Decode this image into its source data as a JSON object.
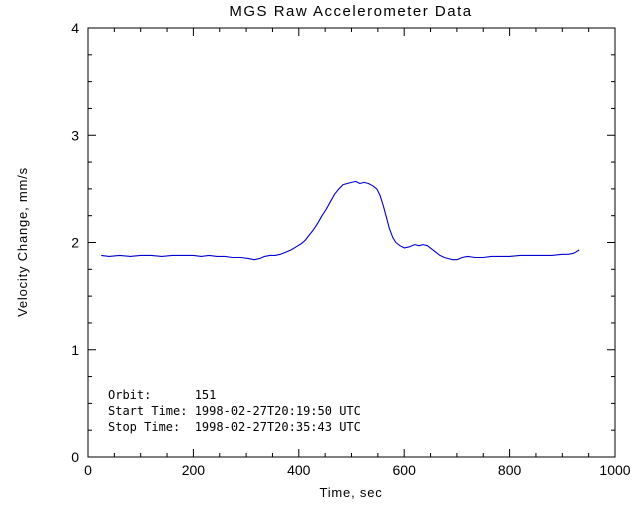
{
  "chart_data": {
    "type": "line",
    "title": "MGS Raw Accelerometer Data",
    "xlabel": "Time, sec",
    "ylabel": "Velocity Change, mm/s",
    "xlim": [
      0,
      1000
    ],
    "ylim": [
      0,
      4
    ],
    "x_ticks": [
      0,
      200,
      400,
      600,
      800,
      1000
    ],
    "x_tick_labels": [
      "0",
      "200",
      "400",
      "600",
      "800",
      "1000"
    ],
    "y_ticks": [
      0,
      1,
      2,
      3,
      4
    ],
    "y_tick_labels": [
      "0",
      "1",
      "2",
      "3",
      "4"
    ],
    "x_minor_step": 50,
    "y_minor_step": 0.25,
    "grid": false,
    "legend": "none",
    "background": "#ffffff",
    "axis_color": "#000000",
    "line_color": "#0000cd",
    "series": [
      {
        "name": "velocity-change",
        "points": [
          [
            25,
            1.88
          ],
          [
            40,
            1.87
          ],
          [
            60,
            1.88
          ],
          [
            80,
            1.87
          ],
          [
            100,
            1.88
          ],
          [
            120,
            1.88
          ],
          [
            140,
            1.87
          ],
          [
            160,
            1.88
          ],
          [
            180,
            1.88
          ],
          [
            200,
            1.88
          ],
          [
            215,
            1.87
          ],
          [
            230,
            1.88
          ],
          [
            245,
            1.87
          ],
          [
            260,
            1.87
          ],
          [
            275,
            1.86
          ],
          [
            290,
            1.86
          ],
          [
            305,
            1.85
          ],
          [
            315,
            1.84
          ],
          [
            325,
            1.85
          ],
          [
            335,
            1.87
          ],
          [
            345,
            1.88
          ],
          [
            355,
            1.88
          ],
          [
            365,
            1.89
          ],
          [
            375,
            1.91
          ],
          [
            385,
            1.93
          ],
          [
            395,
            1.96
          ],
          [
            405,
            1.99
          ],
          [
            412,
            2.02
          ],
          [
            420,
            2.07
          ],
          [
            428,
            2.12
          ],
          [
            436,
            2.18
          ],
          [
            444,
            2.25
          ],
          [
            452,
            2.31
          ],
          [
            460,
            2.38
          ],
          [
            468,
            2.45
          ],
          [
            476,
            2.5
          ],
          [
            484,
            2.54
          ],
          [
            492,
            2.55
          ],
          [
            500,
            2.56
          ],
          [
            508,
            2.57
          ],
          [
            516,
            2.55
          ],
          [
            524,
            2.56
          ],
          [
            532,
            2.55
          ],
          [
            540,
            2.53
          ],
          [
            548,
            2.5
          ],
          [
            554,
            2.44
          ],
          [
            560,
            2.35
          ],
          [
            566,
            2.24
          ],
          [
            572,
            2.13
          ],
          [
            578,
            2.05
          ],
          [
            584,
            2.0
          ],
          [
            592,
            1.97
          ],
          [
            600,
            1.95
          ],
          [
            610,
            1.96
          ],
          [
            620,
            1.98
          ],
          [
            628,
            1.97
          ],
          [
            636,
            1.98
          ],
          [
            644,
            1.97
          ],
          [
            652,
            1.94
          ],
          [
            660,
            1.91
          ],
          [
            668,
            1.88
          ],
          [
            676,
            1.86
          ],
          [
            684,
            1.85
          ],
          [
            692,
            1.84
          ],
          [
            700,
            1.84
          ],
          [
            710,
            1.86
          ],
          [
            720,
            1.87
          ],
          [
            735,
            1.86
          ],
          [
            750,
            1.86
          ],
          [
            765,
            1.87
          ],
          [
            780,
            1.87
          ],
          [
            800,
            1.87
          ],
          [
            820,
            1.88
          ],
          [
            840,
            1.88
          ],
          [
            860,
            1.88
          ],
          [
            880,
            1.88
          ],
          [
            900,
            1.89
          ],
          [
            912,
            1.89
          ],
          [
            922,
            1.9
          ],
          [
            932,
            1.93
          ]
        ]
      }
    ],
    "annotations": [
      {
        "text": "Orbit:      151"
      },
      {
        "text": "Start Time: 1998-02-27T20:19:50 UTC"
      },
      {
        "text": "Stop Time:  1998-02-27T20:35:43 UTC"
      }
    ]
  }
}
